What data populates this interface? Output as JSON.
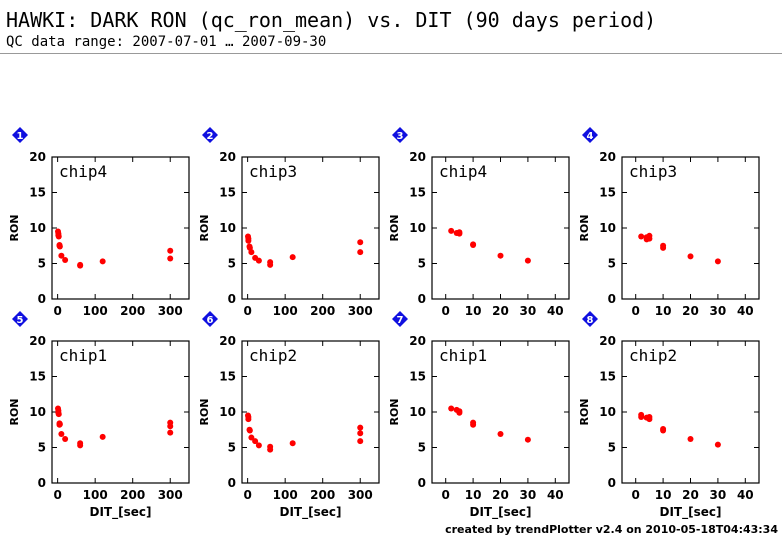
{
  "page": {
    "title": "HAWKI: DARK RON (qc_ron_mean) vs. DIT (90 days period)",
    "subtitle": "QC data range: 2007-07-01 … 2007-09-30",
    "footer": "created by trendPlotter v2.4 on 2010-05-18T04:43:34"
  },
  "colors": {
    "points": "#ff0000",
    "badge": "#1010e0",
    "badge_text": "#ffffff",
    "axes": "#000000"
  },
  "chart_data": [
    {
      "type": "scatter",
      "panel_number": "1",
      "label": "chip4",
      "ylabel": "RON",
      "xlabel": "",
      "xlim": [
        -15,
        350
      ],
      "ylim": [
        0,
        20
      ],
      "xticks": [
        0,
        100,
        200,
        300
      ],
      "yticks": [
        0,
        5,
        10,
        15,
        20
      ],
      "x": [
        1,
        2,
        2,
        3,
        5,
        5,
        6,
        10,
        20,
        60,
        60,
        120,
        300,
        300
      ],
      "y": [
        9.5,
        9.2,
        9.0,
        8.8,
        7.6,
        7.5,
        7.4,
        6.1,
        5.5,
        4.8,
        4.7,
        5.3,
        6.8,
        5.7
      ]
    },
    {
      "type": "scatter",
      "panel_number": "2",
      "label": "chip3",
      "ylabel": "RON",
      "xlabel": "",
      "xlim": [
        -15,
        350
      ],
      "ylim": [
        0,
        20
      ],
      "xticks": [
        0,
        100,
        200,
        300
      ],
      "yticks": [
        0,
        5,
        10,
        15,
        20
      ],
      "x": [
        1,
        2,
        2,
        5,
        6,
        10,
        20,
        30,
        60,
        60,
        120,
        300,
        300
      ],
      "y": [
        8.8,
        8.5,
        8.2,
        7.4,
        7.2,
        6.6,
        5.8,
        5.4,
        5.2,
        4.8,
        5.9,
        8.0,
        6.6
      ]
    },
    {
      "type": "scatter",
      "panel_number": "3",
      "label": "chip4",
      "ylabel": "RON",
      "xlabel": "",
      "xlim": [
        -5,
        45
      ],
      "ylim": [
        0,
        20
      ],
      "xticks": [
        0,
        10,
        20,
        30,
        40
      ],
      "yticks": [
        0,
        5,
        10,
        15,
        20
      ],
      "x": [
        2,
        4,
        5,
        5,
        10,
        10,
        20,
        30
      ],
      "y": [
        9.6,
        9.3,
        9.4,
        9.2,
        7.7,
        7.6,
        6.1,
        5.4
      ]
    },
    {
      "type": "scatter",
      "panel_number": "4",
      "label": "chip3",
      "ylabel": "RON",
      "xlabel": "",
      "xlim": [
        -5,
        45
      ],
      "ylim": [
        0,
        20
      ],
      "xticks": [
        0,
        10,
        20,
        30,
        40
      ],
      "yticks": [
        0,
        5,
        10,
        15,
        20
      ],
      "x": [
        2,
        4,
        4,
        5,
        5,
        10,
        10,
        20,
        30
      ],
      "y": [
        8.8,
        8.7,
        8.4,
        8.9,
        8.5,
        7.5,
        7.2,
        6.0,
        5.3
      ]
    },
    {
      "type": "scatter",
      "panel_number": "5",
      "label": "chip1",
      "ylabel": "RON",
      "xlabel": "DIT_[sec]",
      "xlim": [
        -15,
        350
      ],
      "ylim": [
        0,
        20
      ],
      "xticks": [
        0,
        100,
        200,
        300
      ],
      "yticks": [
        0,
        5,
        10,
        15,
        20
      ],
      "x": [
        1,
        2,
        2,
        3,
        5,
        5,
        6,
        10,
        20,
        60,
        60,
        120,
        300,
        300,
        300
      ],
      "y": [
        10.5,
        10.2,
        9.9,
        9.7,
        8.4,
        8.2,
        8.3,
        6.9,
        6.2,
        5.6,
        5.3,
        6.5,
        8.5,
        8.0,
        7.1
      ]
    },
    {
      "type": "scatter",
      "panel_number": "6",
      "label": "chip2",
      "ylabel": "RON",
      "xlabel": "DIT_[sec]",
      "xlim": [
        -15,
        350
      ],
      "ylim": [
        0,
        20
      ],
      "xticks": [
        0,
        100,
        200,
        300
      ],
      "yticks": [
        0,
        5,
        10,
        15,
        20
      ],
      "x": [
        1,
        2,
        2,
        5,
        6,
        10,
        20,
        30,
        60,
        60,
        120,
        300,
        300,
        300
      ],
      "y": [
        9.5,
        9.3,
        9.0,
        7.5,
        7.4,
        6.4,
        5.9,
        5.3,
        5.1,
        4.7,
        5.6,
        7.8,
        7.0,
        5.9
      ]
    },
    {
      "type": "scatter",
      "panel_number": "7",
      "label": "chip1",
      "ylabel": "RON",
      "xlabel": "DIT_[sec]",
      "xlim": [
        -5,
        45
      ],
      "ylim": [
        0,
        20
      ],
      "xticks": [
        0,
        10,
        20,
        30,
        40
      ],
      "yticks": [
        0,
        5,
        10,
        15,
        20
      ],
      "x": [
        2,
        4,
        5,
        5,
        10,
        10,
        20,
        30
      ],
      "y": [
        10.5,
        10.3,
        10.1,
        9.9,
        8.5,
        8.2,
        6.9,
        6.1
      ]
    },
    {
      "type": "scatter",
      "panel_number": "8",
      "label": "chip2",
      "ylabel": "RON",
      "xlabel": "DIT_[sec]",
      "xlim": [
        -5,
        45
      ],
      "ylim": [
        0,
        20
      ],
      "xticks": [
        0,
        10,
        20,
        30,
        40
      ],
      "yticks": [
        0,
        5,
        10,
        15,
        20
      ],
      "x": [
        2,
        2,
        4,
        5,
        5,
        10,
        10,
        20,
        30
      ],
      "y": [
        9.6,
        9.3,
        9.2,
        9.3,
        9.0,
        7.6,
        7.4,
        6.2,
        5.4
      ]
    }
  ]
}
